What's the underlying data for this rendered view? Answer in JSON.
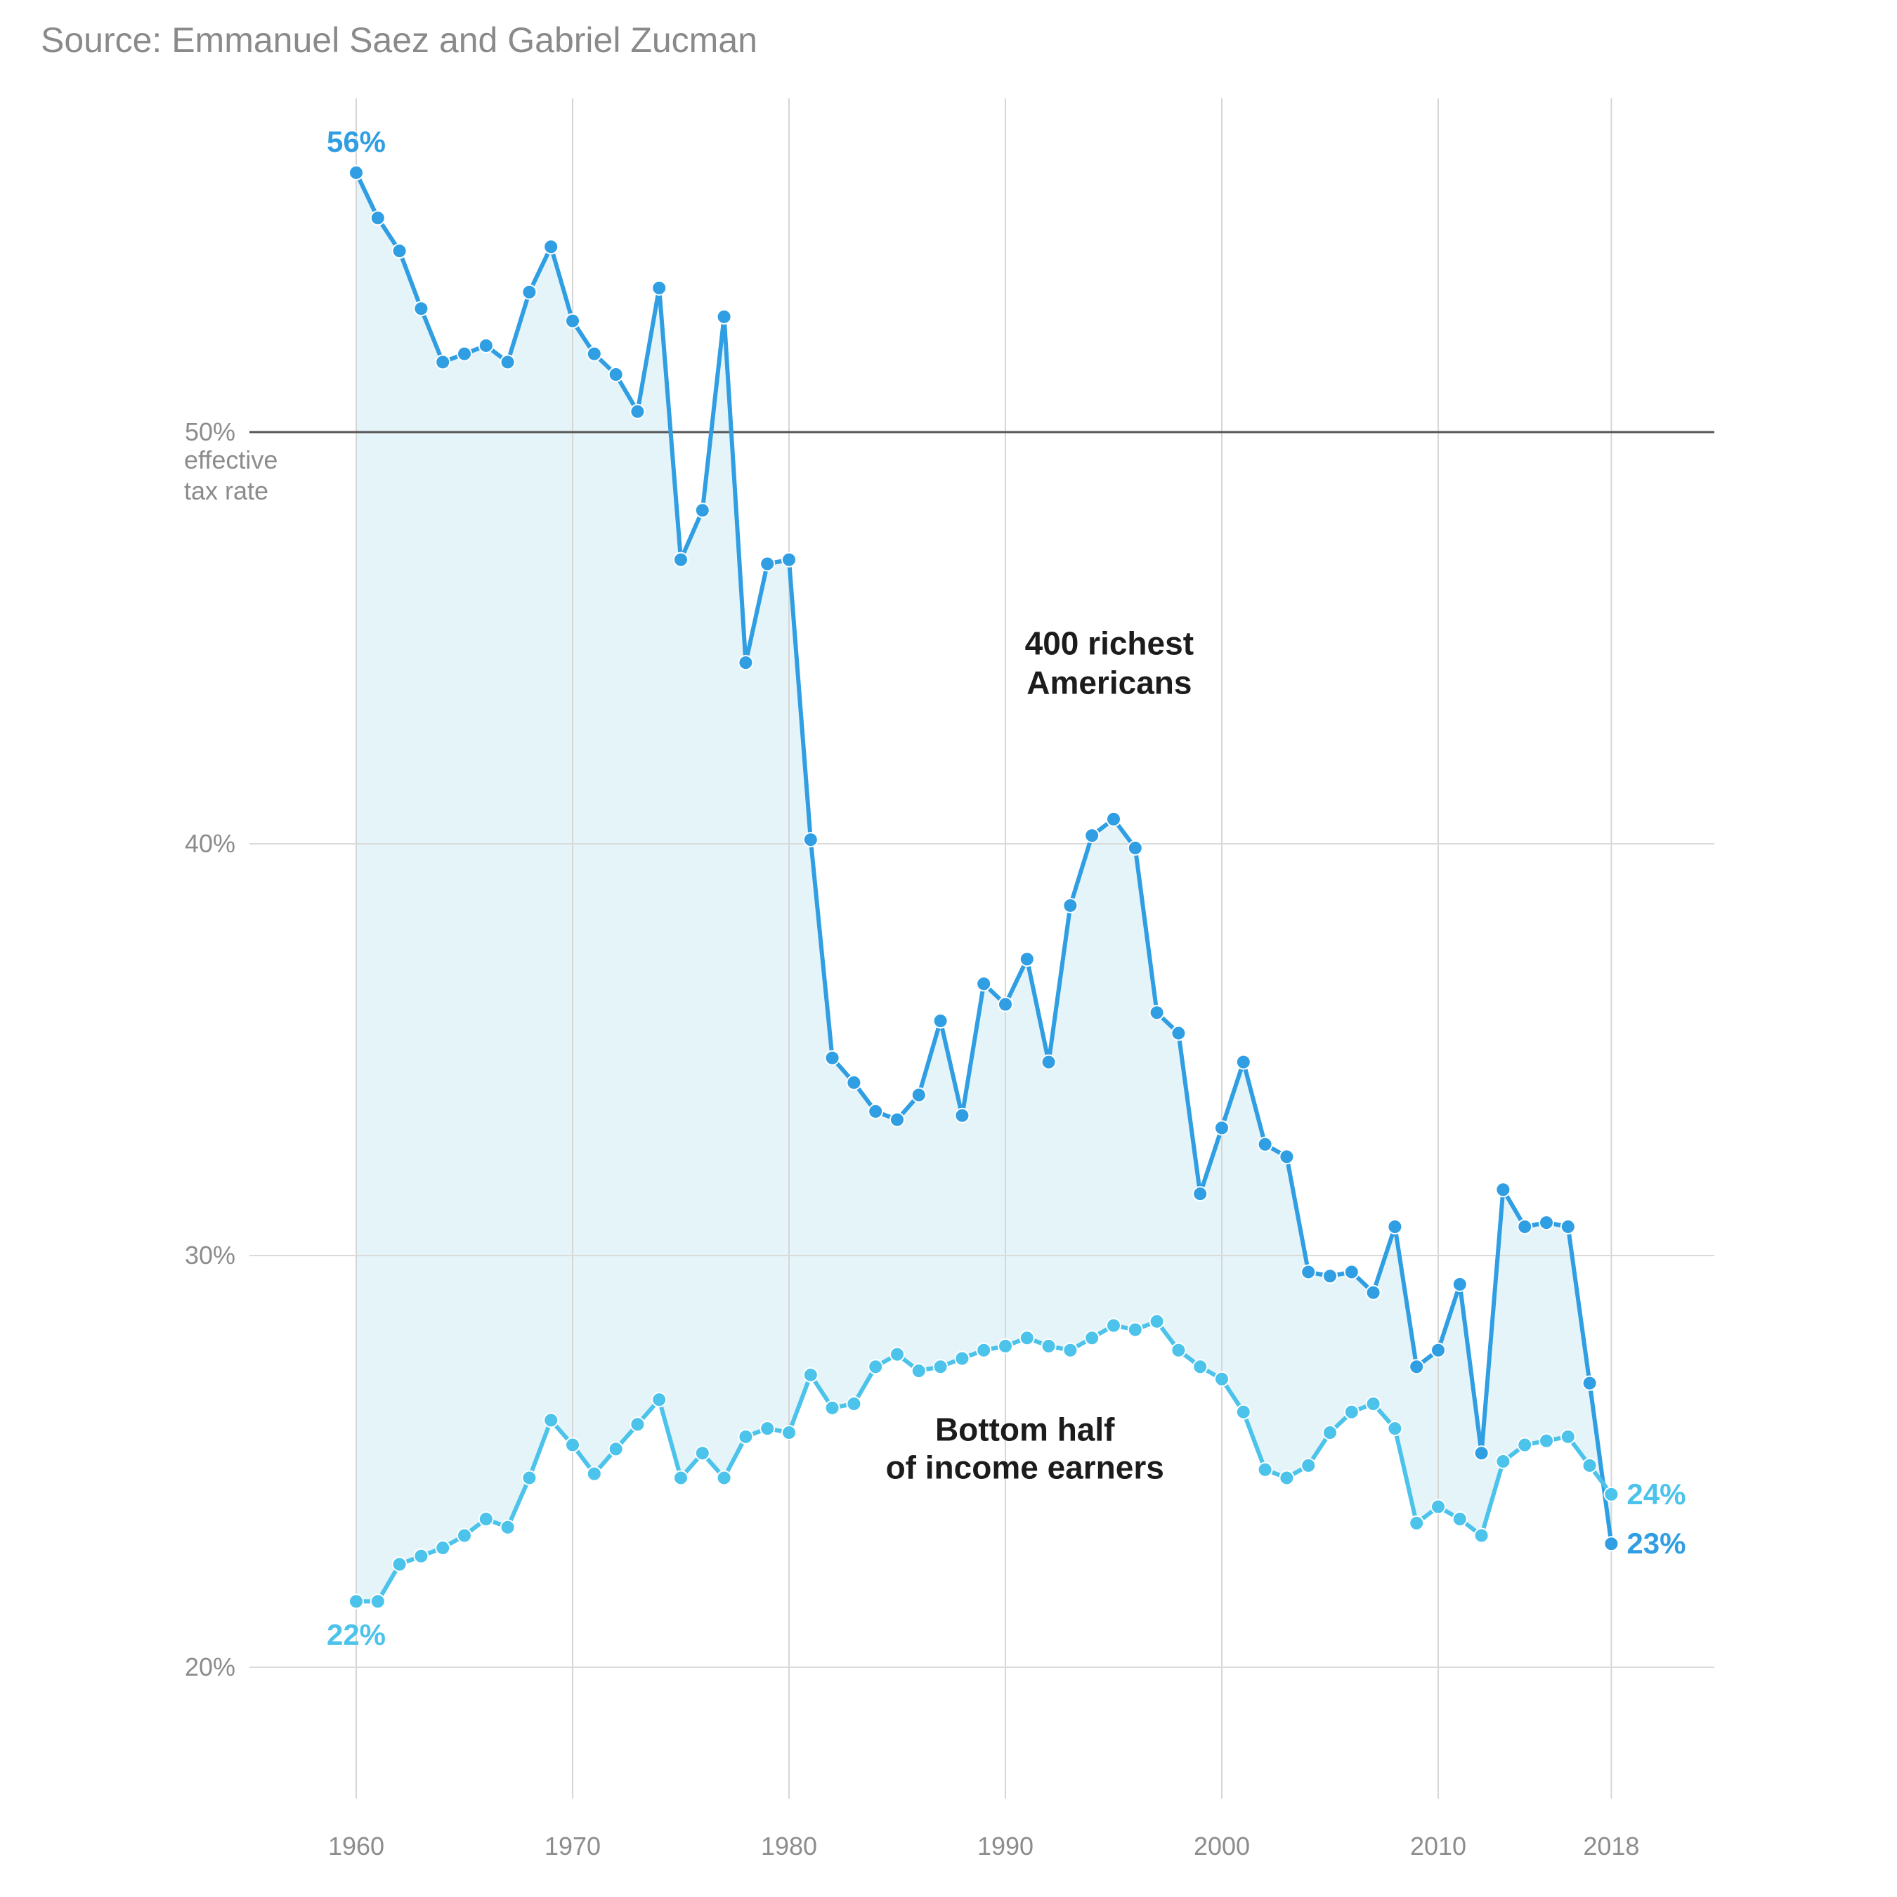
{
  "source": "Source: Emmanuel Saez and Gabriel Zucman",
  "chart_data": {
    "type": "line",
    "title": "",
    "xlabel": "",
    "ylabel": "",
    "xlim": [
      1955,
      2023
    ],
    "ylim": [
      16,
      58
    ],
    "x_ticks": [
      1960,
      1970,
      1980,
      1990,
      2000,
      2010,
      2018
    ],
    "y_ticks": [
      {
        "value": 20,
        "label": "20%"
      },
      {
        "value": 30,
        "label": "30%"
      },
      {
        "value": 40,
        "label": "40%"
      },
      {
        "value": 50,
        "label": "50%"
      }
    ],
    "reference_line": {
      "value": 50,
      "label": "50%",
      "note_lines": [
        "effective",
        "tax rate"
      ]
    },
    "x": [
      1960,
      1961,
      1962,
      1963,
      1964,
      1965,
      1966,
      1967,
      1968,
      1969,
      1970,
      1971,
      1972,
      1973,
      1974,
      1975,
      1976,
      1977,
      1978,
      1979,
      1980,
      1981,
      1982,
      1983,
      1984,
      1985,
      1986,
      1987,
      1988,
      1989,
      1990,
      1991,
      1992,
      1993,
      1994,
      1995,
      1996,
      1997,
      1998,
      1999,
      2000,
      2001,
      2002,
      2003,
      2004,
      2005,
      2006,
      2007,
      2008,
      2009,
      2010,
      2011,
      2012,
      2013,
      2014,
      2015,
      2016,
      2017,
      2018
    ],
    "series": [
      {
        "name": "400 richest Americans",
        "label_lines": [
          "400 richest",
          "Americans"
        ],
        "color": "#2f9ee3",
        "start_label": "56%",
        "end_label": "23%",
        "values": [
          56.3,
          55.2,
          54.4,
          53.0,
          51.7,
          51.9,
          52.1,
          51.7,
          53.4,
          54.5,
          52.7,
          51.9,
          51.4,
          50.5,
          53.5,
          46.9,
          48.1,
          52.8,
          44.4,
          46.8,
          46.9,
          40.1,
          34.8,
          34.2,
          33.5,
          33.3,
          33.9,
          35.7,
          33.4,
          36.6,
          36.1,
          37.2,
          34.7,
          38.5,
          40.2,
          40.6,
          39.9,
          35.9,
          35.4,
          31.5,
          33.1,
          34.7,
          32.7,
          32.4,
          29.6,
          29.5,
          29.6,
          29.1,
          30.7,
          27.3,
          27.7,
          29.3,
          25.2,
          31.6,
          30.7,
          30.8,
          30.7,
          26.9,
          23.0
        ]
      },
      {
        "name": "Bottom half of income earners",
        "label_lines": [
          "Bottom half",
          "of income earners"
        ],
        "color": "#4cc3ea",
        "start_label": "22%",
        "end_label": "24%",
        "values": [
          21.6,
          21.6,
          22.5,
          22.7,
          22.9,
          23.2,
          23.6,
          23.4,
          24.6,
          26.0,
          25.4,
          24.7,
          25.3,
          25.9,
          26.5,
          24.6,
          25.2,
          24.6,
          25.6,
          25.8,
          25.7,
          27.1,
          26.3,
          26.4,
          27.3,
          27.6,
          27.2,
          27.3,
          27.5,
          27.7,
          27.8,
          28.0,
          27.8,
          27.7,
          28.0,
          28.3,
          28.2,
          28.4,
          27.7,
          27.3,
          27.0,
          26.2,
          24.8,
          24.6,
          24.9,
          25.7,
          26.2,
          26.4,
          25.8,
          23.5,
          23.9,
          23.6,
          23.2,
          25.0,
          25.4,
          25.5,
          25.6,
          24.9,
          24.2
        ]
      }
    ],
    "fill_between": {
      "color": "#e5f4f8"
    }
  }
}
